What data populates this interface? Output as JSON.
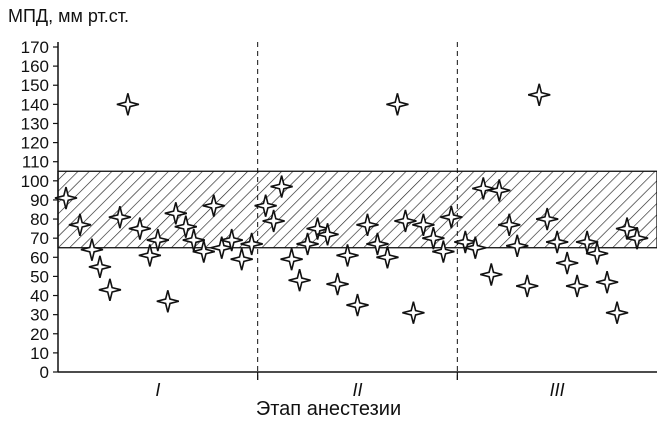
{
  "chart_data": {
    "type": "scatter",
    "ylabel": "МПД, мм рт.ст.",
    "xlabel": "Этап анестезии",
    "ylim": [
      0,
      170
    ],
    "yticks": [
      0,
      10,
      20,
      30,
      40,
      50,
      60,
      70,
      80,
      90,
      100,
      110,
      120,
      130,
      140,
      150,
      160,
      170
    ],
    "categories": [
      "I",
      "II",
      "III"
    ],
    "reference_band": [
      65,
      105
    ],
    "points": [
      {
        "stage": "I",
        "x": 0.04,
        "y": 91
      },
      {
        "stage": "I",
        "x": 0.11,
        "y": 77
      },
      {
        "stage": "I",
        "x": 0.17,
        "y": 64
      },
      {
        "stage": "I",
        "x": 0.21,
        "y": 55
      },
      {
        "stage": "I",
        "x": 0.26,
        "y": 43
      },
      {
        "stage": "I",
        "x": 0.31,
        "y": 81
      },
      {
        "stage": "I",
        "x": 0.35,
        "y": 140
      },
      {
        "stage": "I",
        "x": 0.41,
        "y": 75
      },
      {
        "stage": "I",
        "x": 0.46,
        "y": 61
      },
      {
        "stage": "I",
        "x": 0.5,
        "y": 69
      },
      {
        "stage": "I",
        "x": 0.55,
        "y": 37
      },
      {
        "stage": "I",
        "x": 0.59,
        "y": 83
      },
      {
        "stage": "I",
        "x": 0.64,
        "y": 76
      },
      {
        "stage": "I",
        "x": 0.68,
        "y": 69
      },
      {
        "stage": "I",
        "x": 0.73,
        "y": 63
      },
      {
        "stage": "I",
        "x": 0.78,
        "y": 87
      },
      {
        "stage": "I",
        "x": 0.82,
        "y": 65
      },
      {
        "stage": "I",
        "x": 0.87,
        "y": 69
      },
      {
        "stage": "I",
        "x": 0.92,
        "y": 59
      },
      {
        "stage": "I",
        "x": 0.97,
        "y": 67
      },
      {
        "stage": "II",
        "x": 0.04,
        "y": 87
      },
      {
        "stage": "II",
        "x": 0.08,
        "y": 79
      },
      {
        "stage": "II",
        "x": 0.12,
        "y": 97
      },
      {
        "stage": "II",
        "x": 0.17,
        "y": 59
      },
      {
        "stage": "II",
        "x": 0.21,
        "y": 48
      },
      {
        "stage": "II",
        "x": 0.25,
        "y": 67
      },
      {
        "stage": "II",
        "x": 0.3,
        "y": 75
      },
      {
        "stage": "II",
        "x": 0.35,
        "y": 72
      },
      {
        "stage": "II",
        "x": 0.4,
        "y": 46
      },
      {
        "stage": "II",
        "x": 0.45,
        "y": 61
      },
      {
        "stage": "II",
        "x": 0.5,
        "y": 35
      },
      {
        "stage": "II",
        "x": 0.55,
        "y": 77
      },
      {
        "stage": "II",
        "x": 0.6,
        "y": 67
      },
      {
        "stage": "II",
        "x": 0.65,
        "y": 60
      },
      {
        "stage": "II",
        "x": 0.7,
        "y": 140
      },
      {
        "stage": "II",
        "x": 0.74,
        "y": 79
      },
      {
        "stage": "II",
        "x": 0.78,
        "y": 31
      },
      {
        "stage": "II",
        "x": 0.83,
        "y": 77
      },
      {
        "stage": "II",
        "x": 0.88,
        "y": 70
      },
      {
        "stage": "II",
        "x": 0.93,
        "y": 63
      },
      {
        "stage": "II",
        "x": 0.97,
        "y": 81
      },
      {
        "stage": "III",
        "x": 0.04,
        "y": 68
      },
      {
        "stage": "III",
        "x": 0.09,
        "y": 65
      },
      {
        "stage": "III",
        "x": 0.13,
        "y": 96
      },
      {
        "stage": "III",
        "x": 0.17,
        "y": 51
      },
      {
        "stage": "III",
        "x": 0.21,
        "y": 95
      },
      {
        "stage": "III",
        "x": 0.26,
        "y": 77
      },
      {
        "stage": "III",
        "x": 0.3,
        "y": 66
      },
      {
        "stage": "III",
        "x": 0.35,
        "y": 45
      },
      {
        "stage": "III",
        "x": 0.41,
        "y": 145
      },
      {
        "stage": "III",
        "x": 0.45,
        "y": 80
      },
      {
        "stage": "III",
        "x": 0.5,
        "y": 68
      },
      {
        "stage": "III",
        "x": 0.55,
        "y": 57
      },
      {
        "stage": "III",
        "x": 0.6,
        "y": 45
      },
      {
        "stage": "III",
        "x": 0.65,
        "y": 68
      },
      {
        "stage": "III",
        "x": 0.7,
        "y": 62
      },
      {
        "stage": "III",
        "x": 0.75,
        "y": 47
      },
      {
        "stage": "III",
        "x": 0.8,
        "y": 31
      },
      {
        "stage": "III",
        "x": 0.85,
        "y": 75
      },
      {
        "stage": "III",
        "x": 0.9,
        "y": 70
      }
    ],
    "grid": false,
    "legend": "none",
    "colors": {
      "ink": "#111111",
      "hatch": "#222222"
    }
  }
}
